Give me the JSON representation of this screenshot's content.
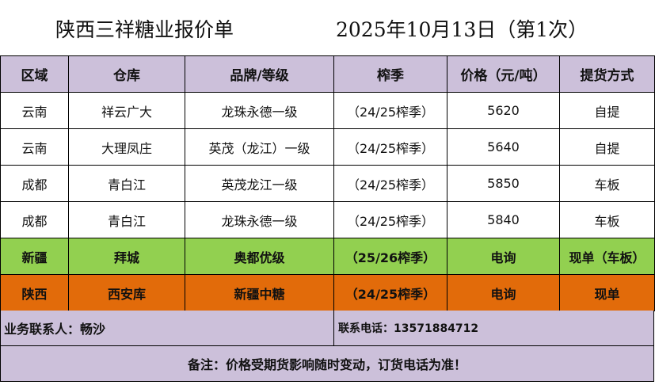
{
  "header": {
    "title": "陕西三祥糖业报价单",
    "date": "2025年10月13日（第1次）"
  },
  "table": {
    "columns": [
      "区域",
      "仓库",
      "品牌/等级",
      "榨季",
      "价格（元/吨）",
      "提货方式"
    ],
    "rows": [
      {
        "region": "云南",
        "warehouse": "祥云广大",
        "brand": "龙珠永德一级",
        "season": "（24/25榨季）",
        "price": "5620",
        "delivery": "自提"
      },
      {
        "region": "云南",
        "warehouse": "大理凤庄",
        "brand": "英茂（龙江）一级",
        "season": "（24/25榨季）",
        "price": "5640",
        "delivery": "自提"
      },
      {
        "region": "成都",
        "warehouse": "青白江",
        "brand": "英茂龙江一级",
        "season": "（24/25榨季）",
        "price": "5850",
        "delivery": "车板"
      },
      {
        "region": "成都",
        "warehouse": "青白江",
        "brand": "龙珠永德一级",
        "season": "（24/25榨季）",
        "price": "5840",
        "delivery": "车板"
      },
      {
        "region": "新疆",
        "warehouse": "拜城",
        "brand": "奥都优级",
        "season": "（25/26榨季）",
        "price": "电询",
        "delivery": "现单（车板）"
      },
      {
        "region": "陕西",
        "warehouse": "西安库",
        "brand": "新疆中糖",
        "season": "（24/25榨季）",
        "price": "电询",
        "delivery": "现单"
      }
    ]
  },
  "footer": {
    "contact_person": "业务联系人：畅沙",
    "contact_phone": "联系电话：13571884712",
    "note": "备注：价格受期货影响随时变动，订货电话为准！"
  },
  "colors": {
    "header_bg": "#ccc0da",
    "green_row": "#92d050",
    "orange_row": "#e26b0a"
  }
}
